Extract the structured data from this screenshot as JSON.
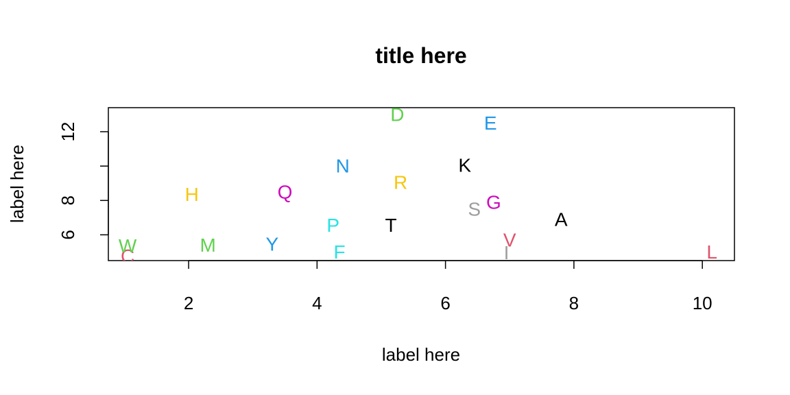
{
  "chart_data": {
    "type": "scatter",
    "title": "title here",
    "xlabel": "label here",
    "ylabel": "label here",
    "xlim": [
      0.75,
      10.5
    ],
    "ylim": [
      4.5,
      13.4
    ],
    "x_ticks": [
      2,
      4,
      6,
      8,
      10
    ],
    "y_ticks": [
      6,
      8,
      10,
      12
    ],
    "y_tick_labels": [
      "6",
      "8",
      "",
      "12"
    ],
    "grid": false,
    "points": [
      {
        "label": "A",
        "x": 7.8,
        "y": 6.9,
        "color": "#000000"
      },
      {
        "label": "C",
        "x": 1.05,
        "y": 4.75,
        "color": "#DF536B"
      },
      {
        "label": "D",
        "x": 5.25,
        "y": 13.0,
        "color": "#61D04F"
      },
      {
        "label": "E",
        "x": 6.7,
        "y": 12.5,
        "color": "#2297E6"
      },
      {
        "label": "F",
        "x": 4.35,
        "y": 5.0,
        "color": "#28E2E5"
      },
      {
        "label": "G",
        "x": 6.75,
        "y": 7.9,
        "color": "#CD0BBC"
      },
      {
        "label": "H",
        "x": 2.05,
        "y": 8.35,
        "color": "#F5C710"
      },
      {
        "label": "I",
        "x": 6.95,
        "y": 4.95,
        "color": "#9E9E9E"
      },
      {
        "label": "K",
        "x": 6.3,
        "y": 10.05,
        "color": "#000000"
      },
      {
        "label": "L",
        "x": 10.15,
        "y": 5.0,
        "color": "#DF536B"
      },
      {
        "label": "M",
        "x": 2.3,
        "y": 5.4,
        "color": "#61D04F"
      },
      {
        "label": "N",
        "x": 4.4,
        "y": 10.0,
        "color": "#2297E6"
      },
      {
        "label": "P",
        "x": 4.25,
        "y": 6.55,
        "color": "#28E2E5"
      },
      {
        "label": "Q",
        "x": 3.5,
        "y": 8.5,
        "color": "#CD0BBC"
      },
      {
        "label": "R",
        "x": 5.3,
        "y": 9.05,
        "color": "#F5C710"
      },
      {
        "label": "S",
        "x": 6.45,
        "y": 7.5,
        "color": "#9E9E9E"
      },
      {
        "label": "T",
        "x": 5.15,
        "y": 6.55,
        "color": "#000000"
      },
      {
        "label": "V",
        "x": 7.0,
        "y": 5.7,
        "color": "#DF536B"
      },
      {
        "label": "W",
        "x": 1.05,
        "y": 5.35,
        "color": "#61D04F"
      },
      {
        "label": "Y",
        "x": 3.3,
        "y": 5.45,
        "color": "#2297E6"
      }
    ]
  }
}
